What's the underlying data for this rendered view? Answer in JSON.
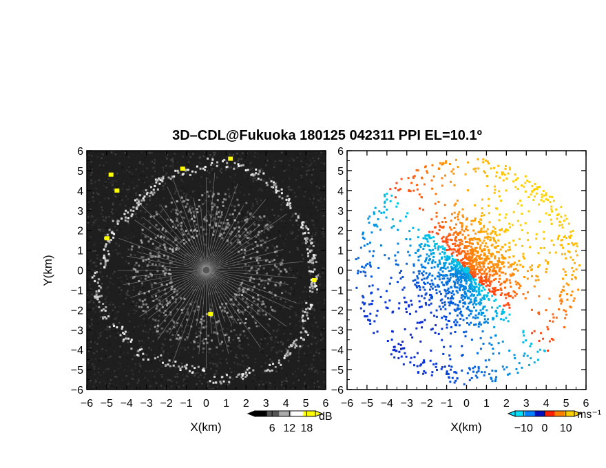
{
  "title": "3D–CDL@Fukuoka 180125 042311 PPI EL=10.1º",
  "colors": {
    "background": "#ffffff",
    "snr_bg": "#1e1e1e",
    "velocity_neg": "#0a2fdc",
    "velocity_zero": "#00c8e6",
    "velocity_pos": "#ff3b14"
  },
  "chart_data": [
    {
      "type": "heatmap",
      "name": "snr-panel",
      "xlabel": "X(km)",
      "ylabel": "Y(km)",
      "xlim": [
        -6,
        6
      ],
      "ylim": [
        -6,
        6
      ],
      "xticks": [
        -6,
        -5,
        -4,
        -3,
        -2,
        -1,
        0,
        1,
        2,
        3,
        4,
        5,
        6
      ],
      "yticks": [
        -6,
        -5,
        -4,
        -3,
        -2,
        -1,
        0,
        1,
        2,
        3,
        4,
        5,
        6
      ],
      "colorbar": {
        "unit": "dB",
        "ticks": [
          6,
          12,
          18
        ],
        "range": [
          0,
          21
        ],
        "colors": [
          "#000000",
          "#555555",
          "#aaaaaa",
          "#ffffff",
          "#ffff00"
        ]
      },
      "strong_echo_points": [
        {
          "x": -4.8,
          "y": 4.8
        },
        {
          "x": -4.5,
          "y": 4.0
        },
        {
          "x": -5.0,
          "y": 1.6
        },
        {
          "x": 0.2,
          "y": -2.2
        },
        {
          "x": 1.2,
          "y": 5.6
        },
        {
          "x": -1.2,
          "y": 5.1
        },
        {
          "x": 5.4,
          "y": -0.5
        }
      ]
    },
    {
      "type": "heatmap",
      "name": "velocity-panel",
      "xlabel": "X(km)",
      "ylabel": "",
      "xlim": [
        -6,
        6
      ],
      "ylim": [
        -6,
        6
      ],
      "xticks": [
        -6,
        -5,
        -4,
        -3,
        -2,
        -1,
        0,
        1,
        2,
        3,
        4,
        5,
        6
      ],
      "yticks": [
        -6,
        -5,
        -4,
        -3,
        -2,
        -1,
        0,
        1,
        2,
        3,
        4,
        5,
        6
      ],
      "colorbar": {
        "unit": "ms⁻¹",
        "ticks": [
          -10,
          0,
          10
        ],
        "range": [
          -14,
          14
        ],
        "colors": [
          "#00e0ff",
          "#0080ff",
          "#0010c0",
          "#ff2000",
          "#ff8000",
          "#ffd000"
        ]
      },
      "wind_direction_deg": 225,
      "max_radial_velocity": 12
    }
  ]
}
